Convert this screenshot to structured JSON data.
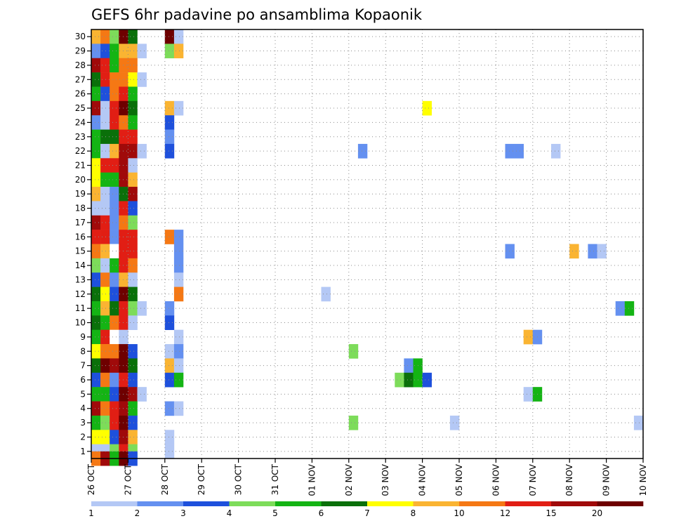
{
  "chart_data": {
    "type": "heatmap",
    "title": "GEFS 6hr padavine po ansamblima Kopaonik",
    "xlabel": "",
    "ylabel": "",
    "x_tick_labels": [
      "26 OCT",
      "27 OCT",
      "28 OCT",
      "29 OCT",
      "30 OCT",
      "31 OCT",
      "01 NOV",
      "02 NOV",
      "03 NOV",
      "04 NOV",
      "05 NOV",
      "06 NOV",
      "07 NOV",
      "08 NOV",
      "09 NOV",
      "10 NOV"
    ],
    "y_tick_labels": [
      "1",
      "2",
      "3",
      "4",
      "5",
      "6",
      "7",
      "8",
      "9",
      "10",
      "11",
      "12",
      "13",
      "14",
      "15",
      "16",
      "17",
      "18",
      "19",
      "20",
      "21",
      "22",
      "23",
      "24",
      "25",
      "26",
      "27",
      "28",
      "29",
      "30"
    ],
    "x_unit": "6h step (0 = 26 OCT 00z, 4 steps per day)",
    "y_unit": "ensemble member",
    "xlim": [
      0,
      60
    ],
    "ylim": [
      0.5,
      30.5
    ],
    "legend": {
      "boundaries": [
        "1",
        "2",
        "3",
        "4",
        "5",
        "6",
        "7",
        "8",
        "10",
        "12",
        "15",
        "20"
      ],
      "colors": [
        "#b4c8f5",
        "#6490f0",
        "#1e50dc",
        "#7ddc5a",
        "#14b414",
        "#0a700a",
        "#ffff00",
        "#fab432",
        "#f57814",
        "#e11e14",
        "#a00a0a",
        "#6e0000"
      ]
    },
    "cells": [
      [
        0,
        30,
        7
      ],
      [
        1,
        30,
        8
      ],
      [
        2,
        30,
        3
      ],
      [
        3,
        30,
        11
      ],
      [
        4,
        30,
        5
      ],
      [
        8,
        30,
        11
      ],
      [
        9,
        30,
        0
      ],
      [
        0,
        29,
        1
      ],
      [
        1,
        29,
        2
      ],
      [
        2,
        29,
        4
      ],
      [
        3,
        29,
        7
      ],
      [
        4,
        29,
        7
      ],
      [
        5,
        29,
        0
      ],
      [
        8,
        29,
        3
      ],
      [
        9,
        29,
        7
      ],
      [
        0,
        28,
        10
      ],
      [
        1,
        28,
        9
      ],
      [
        2,
        28,
        4
      ],
      [
        3,
        28,
        8
      ],
      [
        4,
        28,
        8
      ],
      [
        0,
        27,
        5
      ],
      [
        1,
        27,
        9
      ],
      [
        2,
        27,
        8
      ],
      [
        3,
        27,
        8
      ],
      [
        4,
        27,
        6
      ],
      [
        5,
        27,
        0
      ],
      [
        0,
        26,
        4
      ],
      [
        1,
        26,
        2
      ],
      [
        2,
        26,
        8
      ],
      [
        3,
        26,
        9
      ],
      [
        4,
        26,
        4
      ],
      [
        0,
        25,
        10
      ],
      [
        1,
        25,
        0
      ],
      [
        2,
        25,
        9
      ],
      [
        3,
        25,
        11
      ],
      [
        4,
        25,
        5
      ],
      [
        8,
        25,
        7
      ],
      [
        9,
        25,
        0
      ],
      [
        36,
        25,
        6
      ],
      [
        0,
        24,
        1
      ],
      [
        1,
        24,
        0
      ],
      [
        2,
        24,
        9
      ],
      [
        3,
        24,
        8
      ],
      [
        4,
        24,
        4
      ],
      [
        8,
        24,
        2
      ],
      [
        0,
        23,
        4
      ],
      [
        1,
        23,
        5
      ],
      [
        2,
        23,
        5
      ],
      [
        3,
        23,
        9
      ],
      [
        4,
        23,
        9
      ],
      [
        8,
        23,
        1
      ],
      [
        0,
        22,
        4
      ],
      [
        1,
        22,
        0
      ],
      [
        2,
        22,
        7
      ],
      [
        3,
        22,
        10
      ],
      [
        4,
        22,
        10
      ],
      [
        5,
        22,
        0
      ],
      [
        8,
        22,
        2
      ],
      [
        29,
        22,
        1
      ],
      [
        45,
        22,
        1
      ],
      [
        46,
        22,
        1
      ],
      [
        50,
        22,
        0
      ],
      [
        0,
        21,
        6
      ],
      [
        1,
        21,
        9
      ],
      [
        2,
        21,
        9
      ],
      [
        3,
        21,
        10
      ],
      [
        4,
        21,
        0
      ],
      [
        0,
        20,
        6
      ],
      [
        1,
        20,
        4
      ],
      [
        2,
        20,
        4
      ],
      [
        3,
        20,
        10
      ],
      [
        4,
        20,
        7
      ],
      [
        0,
        19,
        7
      ],
      [
        1,
        19,
        0
      ],
      [
        2,
        19,
        1
      ],
      [
        3,
        19,
        5
      ],
      [
        4,
        19,
        10
      ],
      [
        0,
        18,
        0
      ],
      [
        1,
        18,
        0
      ],
      [
        2,
        18,
        1
      ],
      [
        3,
        18,
        9
      ],
      [
        4,
        18,
        2
      ],
      [
        0,
        17,
        10
      ],
      [
        1,
        17,
        9
      ],
      [
        2,
        17,
        1
      ],
      [
        3,
        17,
        8
      ],
      [
        4,
        17,
        3
      ],
      [
        0,
        16,
        9
      ],
      [
        1,
        16,
        9
      ],
      [
        2,
        16,
        1
      ],
      [
        3,
        16,
        9
      ],
      [
        4,
        16,
        9
      ],
      [
        8,
        16,
        8
      ],
      [
        9,
        16,
        1
      ],
      [
        0,
        15,
        8
      ],
      [
        1,
        15,
        7
      ],
      [
        2,
        15,
        -1
      ],
      [
        3,
        15,
        9
      ],
      [
        4,
        15,
        9
      ],
      [
        9,
        15,
        1
      ],
      [
        45,
        15,
        1
      ],
      [
        52,
        15,
        7
      ],
      [
        54,
        15,
        1
      ],
      [
        55,
        15,
        0
      ],
      [
        0,
        14,
        3
      ],
      [
        1,
        14,
        0
      ],
      [
        2,
        14,
        4
      ],
      [
        3,
        14,
        9
      ],
      [
        4,
        14,
        8
      ],
      [
        9,
        14,
        1
      ],
      [
        0,
        13,
        2
      ],
      [
        1,
        13,
        8
      ],
      [
        2,
        13,
        1
      ],
      [
        3,
        13,
        7
      ],
      [
        4,
        13,
        0
      ],
      [
        9,
        13,
        0
      ],
      [
        0,
        12,
        5
      ],
      [
        1,
        12,
        6
      ],
      [
        2,
        12,
        2
      ],
      [
        3,
        12,
        11
      ],
      [
        4,
        12,
        5
      ],
      [
        9,
        12,
        8
      ],
      [
        25,
        12,
        0
      ],
      [
        0,
        11,
        4
      ],
      [
        1,
        11,
        7
      ],
      [
        2,
        11,
        5
      ],
      [
        3,
        11,
        9
      ],
      [
        4,
        11,
        3
      ],
      [
        5,
        11,
        0
      ],
      [
        8,
        11,
        1
      ],
      [
        57,
        11,
        1
      ],
      [
        58,
        11,
        4
      ],
      [
        0,
        10,
        5
      ],
      [
        1,
        10,
        4
      ],
      [
        2,
        10,
        8
      ],
      [
        3,
        10,
        9
      ],
      [
        4,
        10,
        0
      ],
      [
        8,
        10,
        2
      ],
      [
        0,
        9,
        4
      ],
      [
        1,
        9,
        9
      ],
      [
        2,
        9,
        -1
      ],
      [
        3,
        9,
        0
      ],
      [
        9,
        9,
        0
      ],
      [
        47,
        9,
        7
      ],
      [
        48,
        9,
        1
      ],
      [
        0,
        8,
        6
      ],
      [
        1,
        8,
        8
      ],
      [
        2,
        8,
        8
      ],
      [
        3,
        8,
        11
      ],
      [
        4,
        8,
        2
      ],
      [
        8,
        8,
        0
      ],
      [
        9,
        8,
        1
      ],
      [
        28,
        8,
        3
      ],
      [
        0,
        7,
        5
      ],
      [
        1,
        7,
        11
      ],
      [
        2,
        7,
        10
      ],
      [
        3,
        7,
        11
      ],
      [
        4,
        7,
        5
      ],
      [
        8,
        7,
        7
      ],
      [
        9,
        7,
        0
      ],
      [
        34,
        7,
        1
      ],
      [
        35,
        7,
        4
      ],
      [
        0,
        6,
        2
      ],
      [
        1,
        6,
        8
      ],
      [
        2,
        6,
        1
      ],
      [
        3,
        6,
        9
      ],
      [
        4,
        6,
        2
      ],
      [
        8,
        6,
        2
      ],
      [
        9,
        6,
        4
      ],
      [
        33,
        6,
        3
      ],
      [
        34,
        6,
        5
      ],
      [
        35,
        6,
        4
      ],
      [
        36,
        6,
        2
      ],
      [
        0,
        5,
        4
      ],
      [
        1,
        5,
        4
      ],
      [
        2,
        5,
        2
      ],
      [
        3,
        5,
        11
      ],
      [
        4,
        5,
        10
      ],
      [
        5,
        5,
        0
      ],
      [
        47,
        5,
        0
      ],
      [
        48,
        5,
        4
      ],
      [
        0,
        4,
        10
      ],
      [
        1,
        4,
        8
      ],
      [
        2,
        4,
        9
      ],
      [
        3,
        4,
        10
      ],
      [
        4,
        4,
        4
      ],
      [
        8,
        4,
        1
      ],
      [
        9,
        4,
        0
      ],
      [
        0,
        3,
        4
      ],
      [
        1,
        3,
        3
      ],
      [
        2,
        3,
        9
      ],
      [
        3,
        3,
        11
      ],
      [
        4,
        3,
        2
      ],
      [
        28,
        3,
        3
      ],
      [
        39,
        3,
        0
      ],
      [
        59,
        3,
        0
      ],
      [
        0,
        2,
        6
      ],
      [
        1,
        2,
        6
      ],
      [
        2,
        2,
        2
      ],
      [
        3,
        2,
        10
      ],
      [
        4,
        2,
        7
      ],
      [
        8,
        2,
        0
      ],
      [
        0,
        1,
        0
      ],
      [
        1,
        1,
        0
      ],
      [
        2,
        1,
        3
      ],
      [
        3,
        1,
        9
      ],
      [
        4,
        1,
        3
      ],
      [
        8,
        1,
        0
      ],
      [
        0,
        0.5,
        8
      ],
      [
        1,
        0.5,
        10
      ],
      [
        2,
        0.5,
        4
      ],
      [
        3,
        0.5,
        11
      ],
      [
        4,
        0.5,
        2
      ]
    ]
  }
}
